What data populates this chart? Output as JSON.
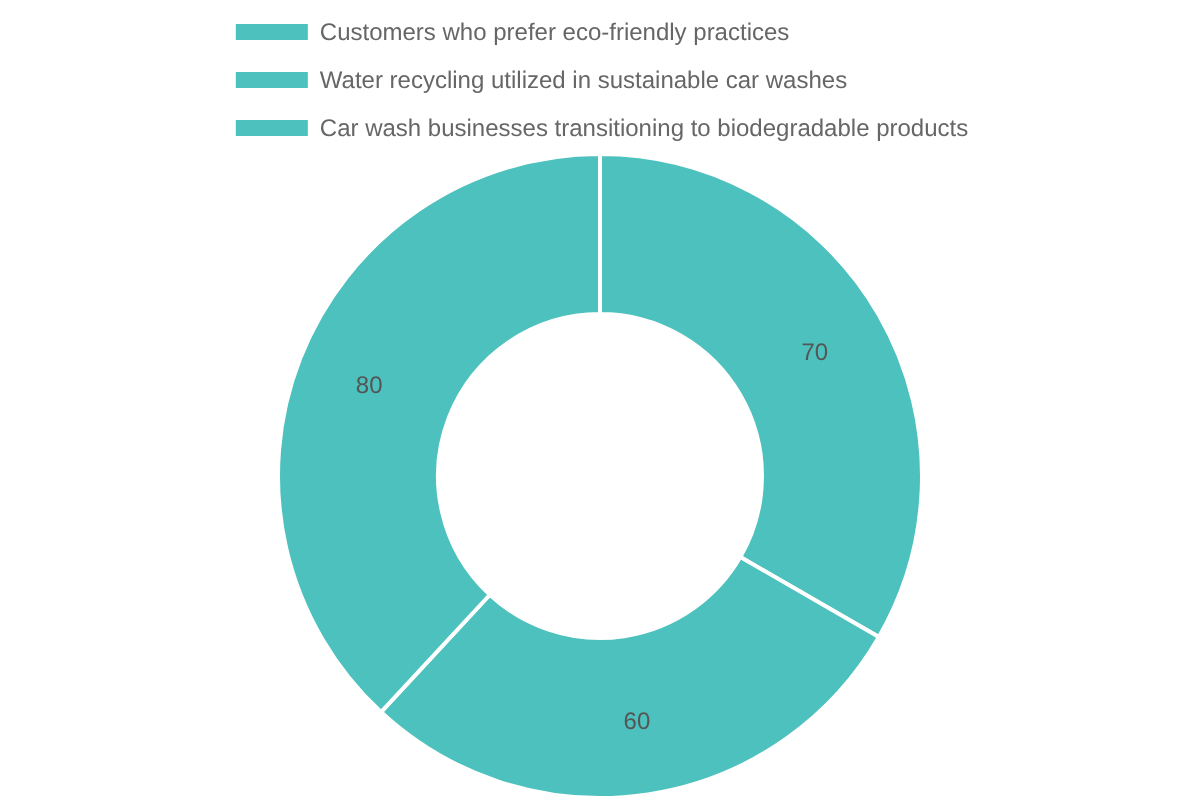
{
  "chart_data": {
    "type": "donut",
    "categories": [
      "Customers who prefer eco-friendly practices",
      "Water recycling utilized in sustainable car washes",
      "Car wash businesses transitioning to biodegradable products"
    ],
    "values": [
      70,
      60,
      80
    ],
    "colors": [
      "#4dc1bd",
      "#4dc1bd",
      "#4dc1bd"
    ],
    "data_labels": true,
    "legend": "top"
  }
}
